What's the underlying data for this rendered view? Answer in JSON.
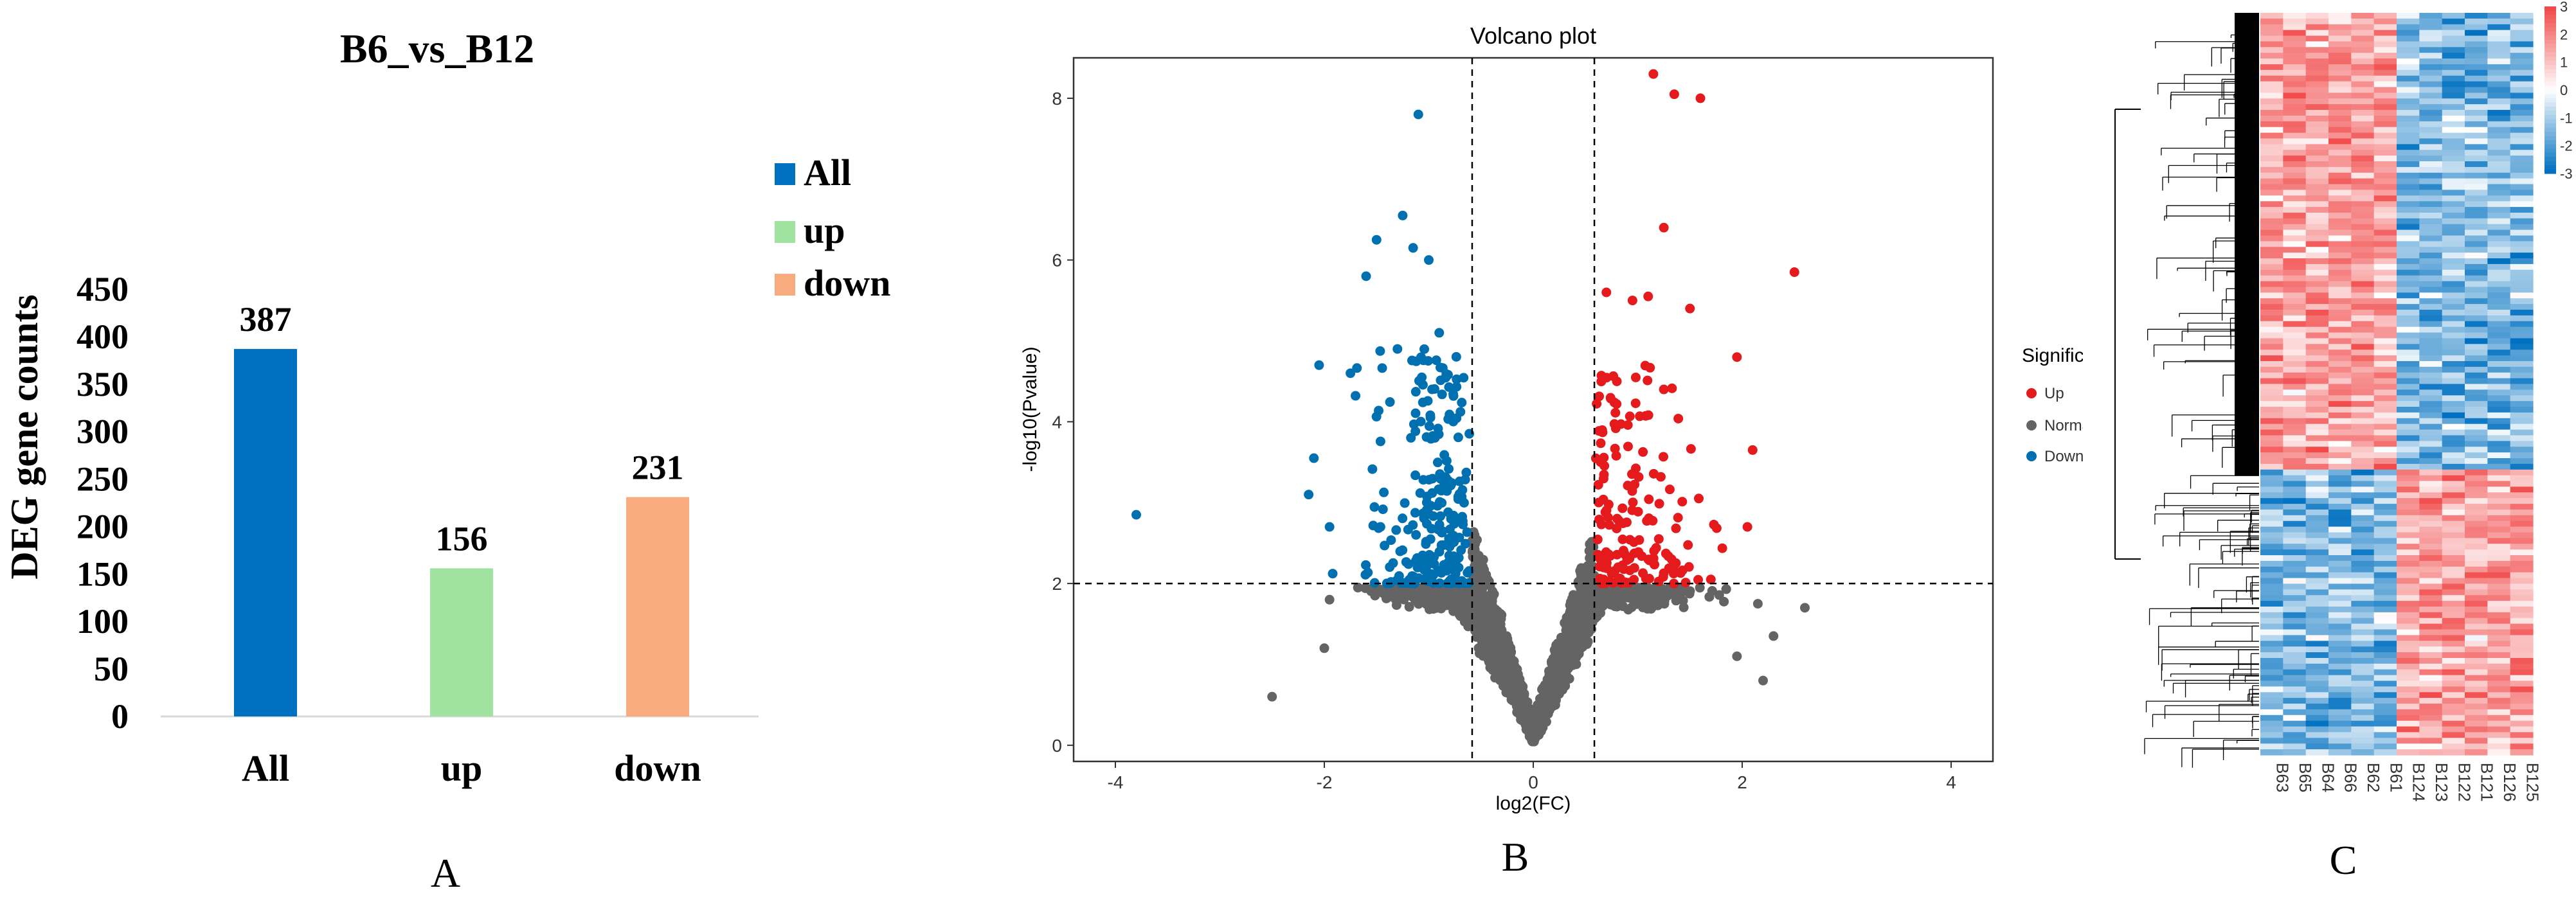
{
  "chart_data": [
    {
      "type": "bar",
      "panel_label": "A",
      "title": "B6_vs_B12",
      "xlabel": "",
      "ylabel": "DEG gene counts",
      "ylim": [
        0,
        450
      ],
      "yticks": [
        "0",
        "50",
        "100",
        "150",
        "200",
        "250",
        "300",
        "350",
        "400",
        "450"
      ],
      "categories": [
        "All",
        "up",
        "down"
      ],
      "values": [
        387,
        156,
        231
      ],
      "value_labels": [
        "387",
        "156",
        "231"
      ],
      "colors": [
        "#0070c0",
        "#a0e3a0",
        "#f8ab7f"
      ],
      "legend": [
        "All",
        "up",
        "down"
      ],
      "legend_position": "right"
    },
    {
      "type": "scatter",
      "panel_label": "B",
      "title": "Volcano plot",
      "xlabel": "log2(FC)",
      "ylabel": "-log10(Pvalue)",
      "xlim": [
        -4.4,
        4.4
      ],
      "ylim": [
        -0.2,
        8.5
      ],
      "xticks": [
        "-4",
        "-2",
        "0",
        "2",
        "4"
      ],
      "yticks": [
        "0",
        "2",
        "4",
        "6",
        "8"
      ],
      "thresholds": {
        "log2fc": [
          -0.585,
          0.585
        ],
        "neg_log10_p": 2
      },
      "legend_title": "Significant",
      "legend": [
        "Up",
        "Normal",
        "Down"
      ],
      "legend_position": "right",
      "colors": {
        "Up": "#e41a1c",
        "Normal": "#646464",
        "Down": "#0070b0"
      },
      "highlighted_points": {
        "Up": [
          [
            1.15,
            8.3
          ],
          [
            1.35,
            8.05
          ],
          [
            1.6,
            8.0
          ],
          [
            2.5,
            5.85
          ],
          [
            1.25,
            6.4
          ],
          [
            0.7,
            5.6
          ],
          [
            0.95,
            5.5
          ],
          [
            1.1,
            5.55
          ],
          [
            1.5,
            5.4
          ],
          [
            1.95,
            4.8
          ],
          [
            2.1,
            3.65
          ],
          [
            2.05,
            2.7
          ],
          [
            1.7,
            2.05
          ],
          [
            1.25,
            4.4
          ],
          [
            0.8,
            4.5
          ]
        ],
        "Down": [
          [
            -1.1,
            7.8
          ],
          [
            -1.25,
            6.55
          ],
          [
            -1.5,
            6.25
          ],
          [
            -1.15,
            6.15
          ],
          [
            -1.0,
            6.0
          ],
          [
            -1.6,
            5.8
          ],
          [
            -2.05,
            4.7
          ],
          [
            -1.75,
            4.6
          ],
          [
            -2.1,
            3.55
          ],
          [
            -2.15,
            3.1
          ],
          [
            -1.95,
            2.7
          ],
          [
            -3.8,
            2.85
          ],
          [
            -1.3,
            4.9
          ],
          [
            -0.9,
            5.1
          ]
        ],
        "Normal": [
          [
            -2.5,
            0.6
          ],
          [
            -1.95,
            1.8
          ],
          [
            2.3,
            1.35
          ],
          [
            2.6,
            1.7
          ],
          [
            2.2,
            0.8
          ],
          [
            2.15,
            1.75
          ],
          [
            -2.0,
            1.2
          ],
          [
            1.95,
            1.1
          ]
        ]
      },
      "n_points_per_group_approx": {
        "Up": 156,
        "Down": 231
      }
    },
    {
      "type": "heatmap",
      "panel_label": "C",
      "columns": [
        "B63",
        "B65",
        "B64",
        "B66",
        "B62",
        "B61",
        "B124",
        "B123",
        "B122",
        "B121",
        "B126",
        "B125"
      ],
      "colorbar_ticks": [
        "3",
        "2",
        "1",
        "0",
        "-1",
        "-2",
        "-3"
      ],
      "color_range": [
        -3,
        3
      ],
      "colors": {
        "low": "#0070c0",
        "mid": "#ffffff",
        "high": "#f14a4a"
      },
      "n_rows_approx": 387,
      "row_dendrogram": true
    }
  ]
}
